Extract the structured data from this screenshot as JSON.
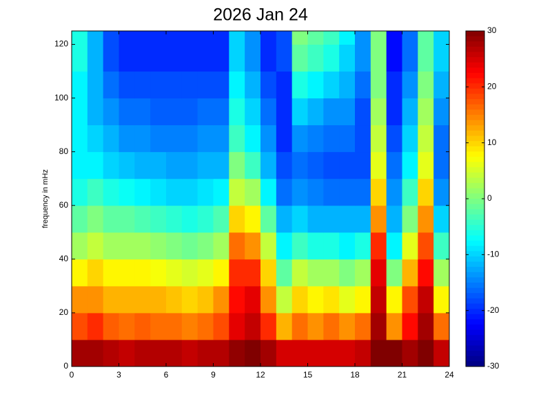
{
  "chart_data": {
    "type": "heatmap",
    "title": "2026 Jan 24",
    "y_label": "frequency in mHz",
    "xbins": [
      0,
      1,
      2,
      3,
      4,
      5,
      6,
      7,
      8,
      9,
      10,
      11,
      12,
      13,
      14,
      15,
      16,
      17,
      18,
      19,
      20,
      21,
      22,
      23,
      24
    ],
    "ybins": [
      0,
      10,
      20,
      30,
      40,
      50,
      60,
      70,
      80,
      90,
      100,
      110,
      120,
      125
    ],
    "z": [
      [
        28,
        28,
        27,
        26,
        27,
        27,
        27,
        26,
        27,
        27,
        29,
        30,
        28,
        25,
        25,
        25,
        25,
        25,
        26,
        30,
        30,
        28,
        30,
        26
      ],
      [
        18,
        20,
        17,
        16,
        17,
        16,
        16,
        15,
        16,
        18,
        24,
        26,
        20,
        12,
        16,
        14,
        16,
        14,
        16,
        28,
        14,
        22,
        28,
        16
      ],
      [
        14,
        14,
        12,
        12,
        12,
        12,
        11,
        10,
        11,
        14,
        22,
        24,
        14,
        4,
        10,
        8,
        9,
        6,
        8,
        26,
        8,
        18,
        26,
        8
      ],
      [
        8,
        10,
        8,
        8,
        8,
        7,
        6,
        5,
        6,
        8,
        20,
        20,
        10,
        -2,
        4,
        2,
        2,
        0,
        2,
        24,
        0,
        12,
        22,
        2
      ],
      [
        2,
        4,
        2,
        2,
        2,
        1,
        0,
        -1,
        0,
        2,
        16,
        14,
        4,
        -8,
        -4,
        -6,
        -6,
        -8,
        -6,
        20,
        -8,
        6,
        18,
        -4
      ],
      [
        -2,
        0,
        -2,
        -2,
        -3,
        -4,
        -5,
        -6,
        -5,
        -3,
        10,
        8,
        -2,
        -12,
        -10,
        -12,
        -12,
        -12,
        -12,
        14,
        -12,
        0,
        14,
        -10
      ],
      [
        -6,
        -4,
        -6,
        -7,
        -8,
        -9,
        -10,
        -10,
        -9,
        -8,
        4,
        2,
        -8,
        -16,
        -14,
        -15,
        -16,
        -16,
        -16,
        10,
        -14,
        -4,
        10,
        -14
      ],
      [
        -8,
        -8,
        -10,
        -11,
        -12,
        -12,
        -13,
        -13,
        -12,
        -12,
        0,
        -4,
        -12,
        -18,
        -16,
        -17,
        -18,
        -18,
        -18,
        6,
        -16,
        -8,
        6,
        -16
      ],
      [
        -8,
        -10,
        -12,
        -14,
        -14,
        -15,
        -15,
        -15,
        -14,
        -14,
        -4,
        -8,
        -14,
        -20,
        -14,
        -15,
        -16,
        -16,
        -18,
        4,
        -18,
        -10,
        4,
        -16
      ],
      [
        -8,
        -12,
        -14,
        -16,
        -16,
        -17,
        -17,
        -17,
        -16,
        -16,
        -6,
        -10,
        -16,
        -20,
        -10,
        -12,
        -14,
        -14,
        -18,
        2,
        -20,
        -12,
        2,
        -14
      ],
      [
        -8,
        -12,
        -16,
        -18,
        -18,
        -18,
        -18,
        -18,
        -18,
        -18,
        -8,
        -12,
        -18,
        -20,
        -6,
        -8,
        -10,
        -12,
        -16,
        0,
        -20,
        -14,
        0,
        -12
      ],
      [
        -6,
        -12,
        -18,
        -20,
        -20,
        -20,
        -20,
        -20,
        -20,
        -20,
        -10,
        -14,
        -20,
        -18,
        -2,
        -4,
        -6,
        -10,
        -14,
        0,
        -22,
        -16,
        -2,
        -10
      ],
      [
        -6,
        -12,
        -18,
        -20,
        -20,
        -20,
        -20,
        -20,
        -20,
        -20,
        -10,
        -14,
        -20,
        -18,
        0,
        -2,
        -4,
        -8,
        -14,
        0,
        -22,
        -16,
        -2,
        -10
      ]
    ],
    "xlim": [
      0,
      24
    ],
    "xticks": [
      0,
      3,
      6,
      9,
      12,
      15,
      18,
      21,
      24
    ],
    "ylim": [
      0,
      125
    ],
    "yticks": [
      0,
      20,
      40,
      60,
      80,
      100,
      120
    ],
    "clim": [
      -30,
      30
    ],
    "cticks": [
      -30,
      -20,
      -10,
      0,
      10,
      20,
      30
    ],
    "colormap": "jet"
  }
}
